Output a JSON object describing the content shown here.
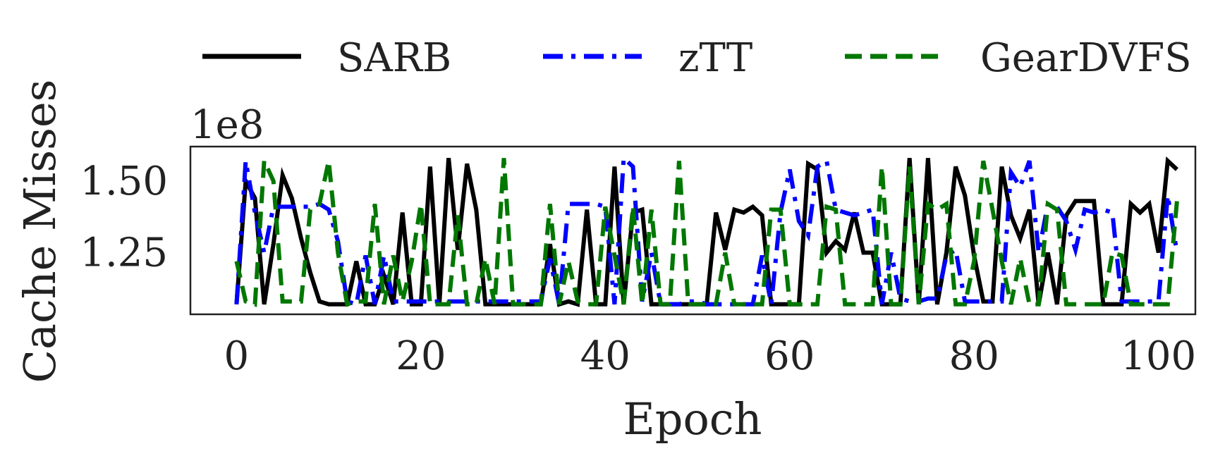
{
  "chart_data": {
    "type": "line",
    "title": "",
    "xlabel": "Epoch",
    "ylabel": "Cache Misses",
    "y_offset_label": "1e8",
    "xlim": [
      -5,
      104
    ],
    "ylim": [
      1.035,
      1.62
    ],
    "xticks": [
      0,
      20,
      40,
      60,
      80,
      100
    ],
    "xtick_labels": [
      "0",
      "20",
      "40",
      "60",
      "80",
      "100"
    ],
    "yticks": [
      1.25,
      1.5
    ],
    "ytick_labels": [
      "1.25",
      "1.50"
    ],
    "grid": false,
    "legend_position": "top",
    "series": [
      {
        "name": "SARB",
        "color": "#000000",
        "dash": "solid",
        "values": [
          1.07,
          1.5,
          1.44,
          1.07,
          1.28,
          1.52,
          1.44,
          1.3,
          1.18,
          1.08,
          1.07,
          1.07,
          1.07,
          1.22,
          1.07,
          1.07,
          1.17,
          1.07,
          1.39,
          1.07,
          1.07,
          1.55,
          1.07,
          1.58,
          1.26,
          1.56,
          1.4,
          1.07,
          1.07,
          1.07,
          1.07,
          1.07,
          1.07,
          1.07,
          1.28,
          1.07,
          1.08,
          1.07,
          1.4,
          1.07,
          1.07,
          1.55,
          1.07,
          1.39,
          1.4,
          1.07,
          1.07,
          1.07,
          1.07,
          1.07,
          1.07,
          1.07,
          1.39,
          1.26,
          1.4,
          1.39,
          1.41,
          1.38,
          1.07,
          1.07,
          1.07,
          1.07,
          1.56,
          1.54,
          1.25,
          1.29,
          1.26,
          1.39,
          1.25,
          1.25,
          1.07,
          1.07,
          1.07,
          1.58,
          1.07,
          1.58,
          1.07,
          1.25,
          1.55,
          1.45,
          1.24,
          1.08,
          1.08,
          1.55,
          1.38,
          1.3,
          1.4,
          1.07,
          1.25,
          1.07,
          1.38,
          1.43,
          1.43,
          1.43,
          1.07,
          1.07,
          1.07,
          1.42,
          1.39,
          1.42,
          1.25,
          1.57,
          1.54
        ]
      },
      {
        "name": "zTT",
        "color": "#0000ff",
        "dash": "dashdot",
        "values": [
          1.07,
          1.57,
          1.39,
          1.25,
          1.41,
          1.41,
          1.41,
          1.41,
          1.41,
          1.42,
          1.4,
          1.29,
          1.08,
          1.07,
          1.24,
          1.07,
          1.24,
          1.08,
          1.08,
          1.08,
          1.08,
          1.08,
          1.08,
          1.08,
          1.08,
          1.08,
          1.08,
          1.08,
          1.08,
          1.08,
          1.08,
          1.08,
          1.08,
          1.08,
          1.23,
          1.07,
          1.42,
          1.42,
          1.42,
          1.42,
          1.41,
          1.07,
          1.58,
          1.55,
          1.08,
          1.25,
          1.07,
          1.07,
          1.07,
          1.08,
          1.08,
          1.07,
          1.07,
          1.07,
          1.07,
          1.07,
          1.07,
          1.24,
          1.07,
          1.39,
          1.54,
          1.36,
          1.31,
          1.55,
          1.57,
          1.4,
          1.39,
          1.38,
          1.39,
          1.4,
          1.07,
          1.25,
          1.09,
          1.08,
          1.08,
          1.09,
          1.09,
          1.24,
          1.26,
          1.08,
          1.08,
          1.08,
          1.08,
          1.08,
          1.53,
          1.48,
          1.57,
          1.25,
          1.42,
          1.41,
          1.36,
          1.26,
          1.4,
          1.39,
          1.4,
          1.39,
          1.08,
          1.08,
          1.08,
          1.08,
          1.08,
          1.45,
          1.25
        ]
      },
      {
        "name": "GearDVFS",
        "color": "#007700",
        "dash": "dashed",
        "values": [
          1.22,
          1.08,
          1.07,
          1.57,
          1.5,
          1.08,
          1.08,
          1.08,
          1.4,
          1.42,
          1.57,
          1.25,
          1.07,
          1.08,
          1.08,
          1.42,
          1.07,
          1.24,
          1.08,
          1.22,
          1.42,
          1.07,
          1.07,
          1.07,
          1.38,
          1.07,
          1.07,
          1.23,
          1.07,
          1.58,
          1.07,
          1.07,
          1.07,
          1.07,
          1.42,
          1.07,
          1.22,
          1.08,
          1.07,
          1.07,
          1.41,
          1.24,
          1.07,
          1.41,
          1.07,
          1.4,
          1.07,
          1.07,
          1.57,
          1.07,
          1.07,
          1.07,
          1.07,
          1.25,
          1.07,
          1.07,
          1.07,
          1.07,
          1.4,
          1.4,
          1.07,
          1.07,
          1.07,
          1.07,
          1.41,
          1.4,
          1.07,
          1.07,
          1.07,
          1.07,
          1.55,
          1.07,
          1.07,
          1.55,
          1.07,
          1.42,
          1.4,
          1.42,
          1.07,
          1.07,
          1.22,
          1.57,
          1.4,
          1.22,
          1.07,
          1.23,
          1.07,
          1.07,
          1.42,
          1.4,
          1.07,
          1.07,
          1.07,
          1.07,
          1.07,
          1.25,
          1.24,
          1.07,
          1.07,
          1.07,
          1.07,
          1.07,
          1.43
        ]
      }
    ]
  }
}
